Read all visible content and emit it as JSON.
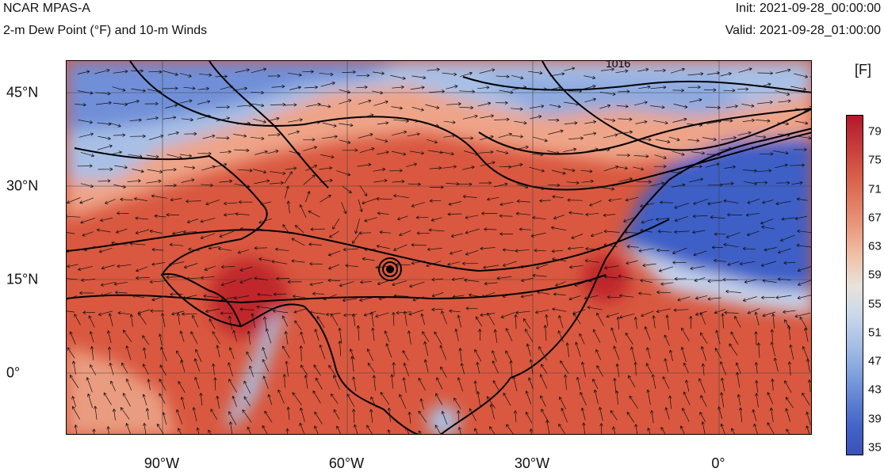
{
  "header": {
    "title": "NCAR MPAS-A",
    "subtitle": "2-m Dew Point (°F) and 10-m Winds",
    "init": "Init: 2021-09-28_00:00:00",
    "valid": "Valid: 2021-09-28_01:00:00"
  },
  "map": {
    "lat_labels": [
      "45°N",
      "30°N",
      "15°N",
      "0°"
    ],
    "lon_labels": [
      "90°W",
      "60°W",
      "30°W",
      "0°"
    ],
    "contour_label": "1016",
    "colors": {
      "warm": "#d7503c",
      "hot": "#c0282a",
      "mild": "#f0a58a",
      "cool": "#b8ccec",
      "cold": "#3a5fc8",
      "land_line": "#000000"
    }
  },
  "colorbar": {
    "unit": "[F]",
    "labels": [
      "79",
      "75",
      "71",
      "67",
      "63",
      "59",
      "55",
      "51",
      "47",
      "43",
      "39",
      "35"
    ],
    "colors": [
      "#b2182b",
      "#c43a3a",
      "#d65a48",
      "#e07a60",
      "#ea9c80",
      "#f1c2a8",
      "#e8e2dc",
      "#cdd9ea",
      "#a9c2e6",
      "#86a6de",
      "#6284d2",
      "#4364c6",
      "#3a52b8"
    ]
  }
}
